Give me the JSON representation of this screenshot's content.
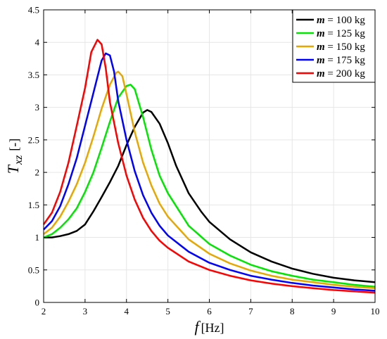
{
  "chart_data": {
    "type": "line",
    "title": "",
    "xlabel": {
      "var": "f",
      "unit": "[Hz]"
    },
    "ylabel": {
      "var": "T",
      "sub": "xz",
      "unit": "[-]"
    },
    "xlim": [
      2,
      10
    ],
    "ylim": [
      0,
      4.5
    ],
    "xticks": [
      2,
      3,
      4,
      5,
      6,
      7,
      8,
      9,
      10
    ],
    "yticks": [
      0,
      0.5,
      1,
      1.5,
      2,
      2.5,
      3,
      3.5,
      4,
      4.5
    ],
    "grid": true,
    "legend_position": "top-right",
    "series": [
      {
        "name": "m = 100 kg",
        "legend": {
          "var": "m",
          "rest": " = 100 kg"
        },
        "color": "#000000",
        "points": [
          [
            2.0,
            1.0
          ],
          [
            2.2,
            1.0
          ],
          [
            2.4,
            1.02
          ],
          [
            2.6,
            1.05
          ],
          [
            2.8,
            1.1
          ],
          [
            3.0,
            1.2
          ],
          [
            3.2,
            1.4
          ],
          [
            3.4,
            1.62
          ],
          [
            3.6,
            1.85
          ],
          [
            3.8,
            2.1
          ],
          [
            4.0,
            2.42
          ],
          [
            4.2,
            2.7
          ],
          [
            4.4,
            2.92
          ],
          [
            4.5,
            2.96
          ],
          [
            4.6,
            2.93
          ],
          [
            4.8,
            2.75
          ],
          [
            5.0,
            2.45
          ],
          [
            5.2,
            2.1
          ],
          [
            5.5,
            1.68
          ],
          [
            5.8,
            1.4
          ],
          [
            6.0,
            1.24
          ],
          [
            6.5,
            0.97
          ],
          [
            7.0,
            0.77
          ],
          [
            7.5,
            0.63
          ],
          [
            8.0,
            0.52
          ],
          [
            8.5,
            0.44
          ],
          [
            9.0,
            0.38
          ],
          [
            9.5,
            0.34
          ],
          [
            10.0,
            0.31
          ]
        ]
      },
      {
        "name": "m = 125 kg",
        "legend": {
          "var": "m",
          "rest": " = 125 kg"
        },
        "color": "#00e600",
        "points": [
          [
            2.0,
            1.0
          ],
          [
            2.2,
            1.05
          ],
          [
            2.4,
            1.15
          ],
          [
            2.6,
            1.28
          ],
          [
            2.8,
            1.45
          ],
          [
            3.0,
            1.7
          ],
          [
            3.2,
            2.0
          ],
          [
            3.4,
            2.38
          ],
          [
            3.6,
            2.78
          ],
          [
            3.8,
            3.15
          ],
          [
            4.0,
            3.33
          ],
          [
            4.1,
            3.35
          ],
          [
            4.2,
            3.28
          ],
          [
            4.4,
            2.85
          ],
          [
            4.6,
            2.35
          ],
          [
            4.8,
            1.95
          ],
          [
            5.0,
            1.68
          ],
          [
            5.5,
            1.18
          ],
          [
            6.0,
            0.9
          ],
          [
            6.5,
            0.72
          ],
          [
            7.0,
            0.58
          ],
          [
            7.5,
            0.48
          ],
          [
            8.0,
            0.41
          ],
          [
            8.5,
            0.35
          ],
          [
            9.0,
            0.31
          ],
          [
            9.5,
            0.27
          ],
          [
            10.0,
            0.24
          ]
        ]
      },
      {
        "name": "m = 150 kg",
        "legend": {
          "var": "m",
          "rest": " = 150 kg"
        },
        "color": "#e6a800",
        "points": [
          [
            2.0,
            1.05
          ],
          [
            2.2,
            1.15
          ],
          [
            2.4,
            1.32
          ],
          [
            2.6,
            1.55
          ],
          [
            2.8,
            1.82
          ],
          [
            3.0,
            2.15
          ],
          [
            3.2,
            2.55
          ],
          [
            3.4,
            2.98
          ],
          [
            3.6,
            3.35
          ],
          [
            3.75,
            3.53
          ],
          [
            3.8,
            3.55
          ],
          [
            3.9,
            3.48
          ],
          [
            4.0,
            3.2
          ],
          [
            4.2,
            2.62
          ],
          [
            4.4,
            2.15
          ],
          [
            4.6,
            1.8
          ],
          [
            4.8,
            1.52
          ],
          [
            5.0,
            1.32
          ],
          [
            5.5,
            0.97
          ],
          [
            6.0,
            0.75
          ],
          [
            6.5,
            0.6
          ],
          [
            7.0,
            0.49
          ],
          [
            7.5,
            0.41
          ],
          [
            8.0,
            0.35
          ],
          [
            8.5,
            0.31
          ],
          [
            9.0,
            0.27
          ],
          [
            9.5,
            0.24
          ],
          [
            10.0,
            0.22
          ]
        ]
      },
      {
        "name": "m = 175 kg",
        "legend": {
          "var": "m",
          "rest": " = 175 kg"
        },
        "color": "#0000ff",
        "points": [
          [
            2.0,
            1.12
          ],
          [
            2.2,
            1.25
          ],
          [
            2.4,
            1.48
          ],
          [
            2.6,
            1.82
          ],
          [
            2.8,
            2.22
          ],
          [
            3.0,
            2.72
          ],
          [
            3.2,
            3.22
          ],
          [
            3.4,
            3.72
          ],
          [
            3.5,
            3.83
          ],
          [
            3.6,
            3.8
          ],
          [
            3.7,
            3.55
          ],
          [
            3.8,
            3.1
          ],
          [
            4.0,
            2.5
          ],
          [
            4.2,
            2.02
          ],
          [
            4.4,
            1.65
          ],
          [
            4.6,
            1.38
          ],
          [
            4.8,
            1.18
          ],
          [
            5.0,
            1.03
          ],
          [
            5.5,
            0.78
          ],
          [
            6.0,
            0.61
          ],
          [
            6.5,
            0.5
          ],
          [
            7.0,
            0.41
          ],
          [
            7.5,
            0.35
          ],
          [
            8.0,
            0.3
          ],
          [
            8.5,
            0.26
          ],
          [
            9.0,
            0.23
          ],
          [
            9.5,
            0.2
          ],
          [
            10.0,
            0.18
          ]
        ]
      },
      {
        "name": "m = 200 kg",
        "legend": {
          "var": "m",
          "rest": " = 200 kg"
        },
        "color": "#ff0000",
        "points": [
          [
            2.0,
            1.2
          ],
          [
            2.2,
            1.38
          ],
          [
            2.4,
            1.7
          ],
          [
            2.6,
            2.15
          ],
          [
            2.8,
            2.72
          ],
          [
            3.0,
            3.3
          ],
          [
            3.15,
            3.85
          ],
          [
            3.3,
            4.04
          ],
          [
            3.4,
            3.97
          ],
          [
            3.5,
            3.6
          ],
          [
            3.6,
            3.08
          ],
          [
            3.8,
            2.45
          ],
          [
            4.0,
            1.95
          ],
          [
            4.2,
            1.58
          ],
          [
            4.4,
            1.3
          ],
          [
            4.6,
            1.1
          ],
          [
            4.8,
            0.95
          ],
          [
            5.0,
            0.84
          ],
          [
            5.5,
            0.63
          ],
          [
            6.0,
            0.5
          ],
          [
            6.5,
            0.41
          ],
          [
            7.0,
            0.34
          ],
          [
            7.5,
            0.29
          ],
          [
            8.0,
            0.25
          ],
          [
            8.5,
            0.22
          ],
          [
            9.0,
            0.19
          ],
          [
            9.5,
            0.17
          ],
          [
            10.0,
            0.15
          ]
        ]
      }
    ]
  }
}
